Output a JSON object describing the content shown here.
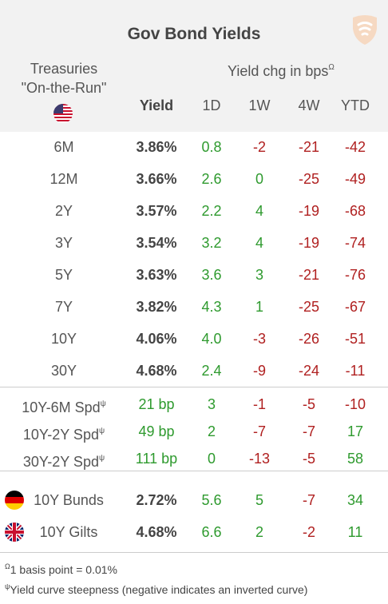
{
  "title": "Gov Bond Yields",
  "treasuries_line1": "Treasuries",
  "treasuries_line2": "\"On-the-Run\"",
  "yield_chg_label": "Yield chg in bps",
  "yield_chg_sup": "Ω",
  "columns": {
    "yield": "Yield",
    "d1": "1D",
    "w1": "1W",
    "w4": "4W",
    "ytd": "YTD"
  },
  "rows": [
    {
      "name": "6M",
      "yield": "3.86%",
      "d1": "0.8",
      "w1": "-2",
      "w4": "-21",
      "ytd": "-42"
    },
    {
      "name": "12M",
      "yield": "3.66%",
      "d1": "2.6",
      "w1": "0",
      "w4": "-25",
      "ytd": "-49"
    },
    {
      "name": "2Y",
      "yield": "3.57%",
      "d1": "2.2",
      "w1": "4",
      "w4": "-19",
      "ytd": "-68"
    },
    {
      "name": "3Y",
      "yield": "3.54%",
      "d1": "3.2",
      "w1": "4",
      "w4": "-19",
      "ytd": "-74"
    },
    {
      "name": "5Y",
      "yield": "3.63%",
      "d1": "3.6",
      "w1": "3",
      "w4": "-21",
      "ytd": "-76"
    },
    {
      "name": "7Y",
      "yield": "3.82%",
      "d1": "4.3",
      "w1": "1",
      "w4": "-25",
      "ytd": "-67"
    },
    {
      "name": "10Y",
      "yield": "4.06%",
      "d1": "4.0",
      "w1": "-3",
      "w4": "-26",
      "ytd": "-51"
    },
    {
      "name": "30Y",
      "yield": "4.68%",
      "d1": "2.4",
      "w1": "-9",
      "w4": "-24",
      "ytd": "-11"
    }
  ],
  "spreads": [
    {
      "name": "10Y-6M Spd",
      "sup": "ψ",
      "yield": "21 bp",
      "d1": "3",
      "w1": "-1",
      "w4": "-5",
      "ytd": "-10"
    },
    {
      "name": "10Y-2Y Spd",
      "sup": "ψ",
      "yield": "49 bp",
      "d1": "2",
      "w1": "-7",
      "w4": "-7",
      "ytd": "17"
    },
    {
      "name": "30Y-2Y Spd",
      "sup": "ψ",
      "yield": "111 bp",
      "d1": "0",
      "w1": "-13",
      "w4": "-5",
      "ytd": "58"
    }
  ],
  "foreign": [
    {
      "name": "10Y Bunds",
      "flag": "germany-flag-icon",
      "yield": "2.72%",
      "d1": "5.6",
      "w1": "5",
      "w4": "-7",
      "ytd": "34"
    },
    {
      "name": "10Y Gilts",
      "flag": "uk-flag-icon",
      "yield": "4.68%",
      "d1": "6.6",
      "w1": "2",
      "w4": "-2",
      "ytd": "11"
    }
  ],
  "footnote1_sup": "Ω",
  "footnote1": "1 basis point = 0.01%",
  "footnote2_sup": "ψ",
  "footnote2": "Yield curve steepness (negative indicates an inverted curve)",
  "colors": {
    "positive": "#2e9a2e",
    "negative": "#b02020",
    "header_bg": "#f2f2f2",
    "logo": "#f6d9c2"
  }
}
